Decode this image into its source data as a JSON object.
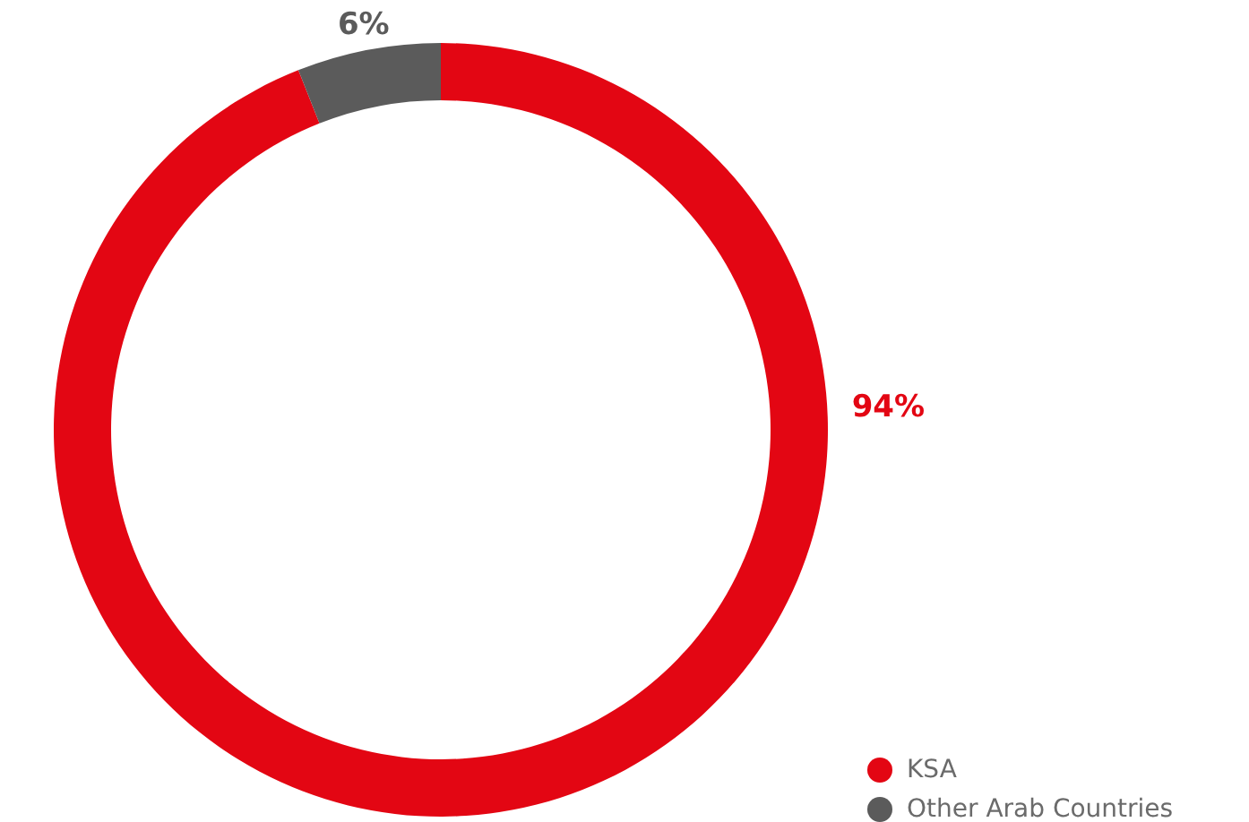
{
  "chart_data": {
    "type": "donut",
    "categories": [
      "KSA",
      "Other Arab Countries"
    ],
    "values": [
      94,
      6
    ],
    "colors": [
      "#e30613",
      "#5b5b5b"
    ],
    "value_labels": [
      "94%",
      "6%"
    ],
    "legend": "bottom right"
  }
}
